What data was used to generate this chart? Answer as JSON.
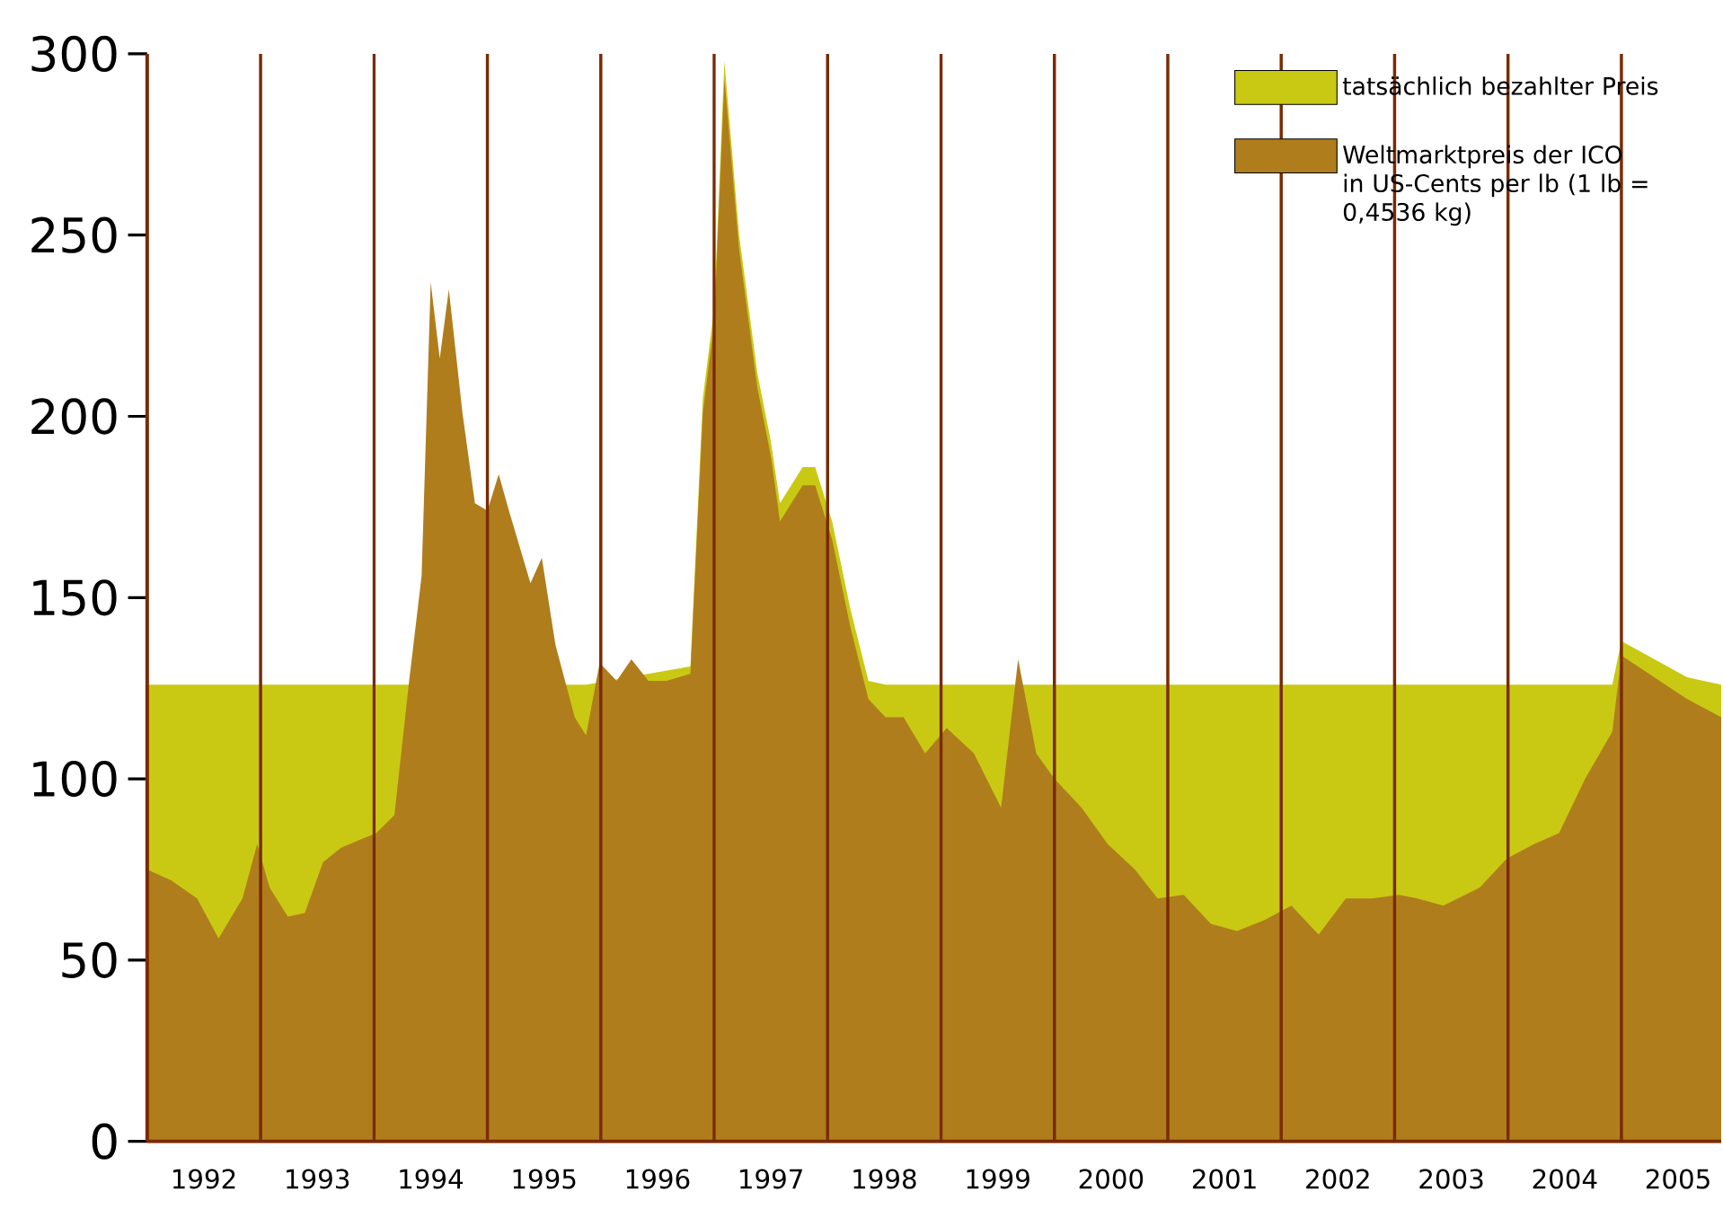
{
  "chart_data": {
    "type": "area",
    "x": [
      1992.0,
      1992.21,
      1992.44,
      1992.63,
      1992.84,
      1992.97,
      1993.08,
      1993.24,
      1993.39,
      1993.55,
      1993.71,
      1993.86,
      1994.02,
      1994.18,
      1994.31,
      1994.42,
      1994.5,
      1994.58,
      1994.66,
      1994.78,
      1994.89,
      1995.0,
      1995.1,
      1995.19,
      1995.38,
      1995.48,
      1995.6,
      1995.77,
      1995.87,
      1995.99,
      1996.14,
      1996.27,
      1996.42,
      1996.58,
      1996.79,
      1996.9,
      1997.0,
      1997.09,
      1997.22,
      1997.38,
      1997.5,
      1997.58,
      1997.78,
      1997.89,
      1998.04,
      1998.2,
      1998.36,
      1998.51,
      1998.67,
      1998.86,
      1999.05,
      1999.29,
      1999.53,
      1999.68,
      1999.84,
      2000.0,
      2000.24,
      2000.47,
      2000.71,
      2000.91,
      2001.14,
      2001.38,
      2001.61,
      2001.85,
      2002.09,
      2002.33,
      2002.57,
      2002.8,
      2003.04,
      2003.2,
      2003.43,
      2003.75,
      2003.99,
      2004.23,
      2004.45,
      2004.68,
      2004.92,
      2005.0,
      2005.58,
      2005.88
    ],
    "series": [
      {
        "name": "tatsächlich bezahlter Preis",
        "color": "#c9c914",
        "values": [
          126,
          126,
          126,
          126,
          126,
          126,
          126,
          126,
          126,
          126,
          126,
          126,
          126,
          126,
          126,
          null,
          null,
          null,
          null,
          null,
          null,
          null,
          null,
          null,
          null,
          null,
          null,
          126,
          126,
          null,
          null,
          null,
          null,
          null,
          131,
          205,
          230,
          298,
          250,
          212,
          193,
          176,
          186,
          186,
          171,
          147,
          127,
          126,
          126,
          126,
          126,
          126,
          126,
          126,
          126,
          126,
          126,
          126,
          126,
          126,
          126,
          126,
          126,
          126,
          126,
          126,
          126,
          126,
          126,
          126,
          126,
          126,
          126,
          126,
          126,
          126,
          126,
          138,
          128,
          126
        ]
      },
      {
        "name": "Weltmarktpreis der ICO in US-Cents per lb (1 lb = 0,4536 kg)",
        "color": "#b07d1c",
        "values": [
          75,
          72,
          67,
          56,
          67,
          82,
          70,
          62,
          63,
          77,
          81,
          83,
          85,
          90,
          127,
          156,
          237,
          216,
          235,
          201,
          176,
          174,
          184,
          174,
          154,
          161,
          137,
          117,
          112,
          132,
          127,
          133,
          127,
          127,
          129,
          201,
          226,
          293,
          246,
          208,
          189,
          171,
          181,
          181,
          166,
          142,
          122,
          117,
          117,
          107,
          114,
          107,
          92,
          133,
          107,
          100,
          92,
          82,
          75,
          67,
          68,
          60,
          58,
          61,
          65,
          57,
          67,
          67,
          68,
          67,
          65,
          70,
          78,
          82,
          85,
          100,
          113,
          134,
          122,
          117
        ]
      }
    ],
    "xlim": [
      1992,
      2005.88
    ],
    "xticks": [
      {
        "value": 1992.5,
        "label": "1992"
      },
      {
        "value": 1993.5,
        "label": "1993"
      },
      {
        "value": 1994.5,
        "label": "1994"
      },
      {
        "value": 1995.5,
        "label": "1995"
      },
      {
        "value": 1996.5,
        "label": "1996"
      },
      {
        "value": 1997.5,
        "label": "1997"
      },
      {
        "value": 1998.5,
        "label": "1998"
      },
      {
        "value": 1999.5,
        "label": "1999"
      },
      {
        "value": 2000.5,
        "label": "2000"
      },
      {
        "value": 2001.5,
        "label": "2001"
      },
      {
        "value": 2002.5,
        "label": "2002"
      },
      {
        "value": 2003.5,
        "label": "2003"
      },
      {
        "value": 2004.5,
        "label": "2004"
      },
      {
        "value": 2005.5,
        "label": "2005"
      }
    ],
    "ylim": [
      0,
      300
    ],
    "yticks": [
      0,
      50,
      100,
      150,
      200,
      250,
      300
    ],
    "ref_lines": [
      {
        "axis": "x",
        "value": 1993,
        "color": "#7a2a00"
      },
      {
        "axis": "x",
        "value": 1994,
        "color": "#7a2a00"
      },
      {
        "axis": "x",
        "value": 1995,
        "color": "#7a2a00"
      },
      {
        "axis": "x",
        "value": 1996,
        "color": "#7a2a00"
      },
      {
        "axis": "x",
        "value": 1997,
        "color": "#7a2a00"
      },
      {
        "axis": "x",
        "value": 1998,
        "color": "#7a2a00"
      },
      {
        "axis": "x",
        "value": 1999,
        "color": "#7a2a00"
      },
      {
        "axis": "x",
        "value": 2000,
        "color": "#7a2a00"
      },
      {
        "axis": "x",
        "value": 2001,
        "color": "#7a2a00"
      },
      {
        "axis": "x",
        "value": 2002,
        "color": "#7a2a00"
      },
      {
        "axis": "x",
        "value": 2003,
        "color": "#7a2a00"
      },
      {
        "axis": "x",
        "value": 2004,
        "color": "#7a2a00"
      },
      {
        "axis": "x",
        "value": 2005,
        "color": "#7a2a00"
      }
    ],
    "legend": "top right",
    "grid": false
  }
}
